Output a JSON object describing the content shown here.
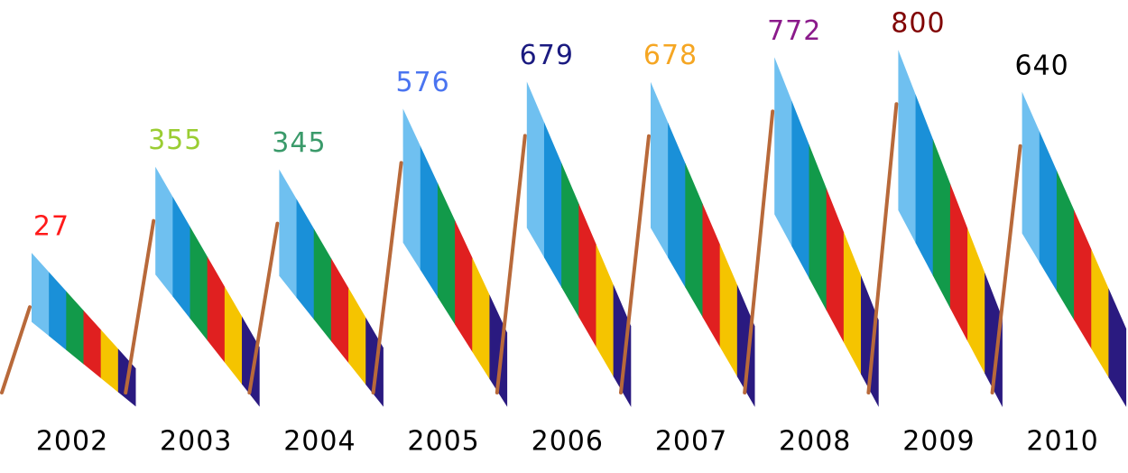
{
  "chart_data": {
    "type": "bar",
    "categories": [
      "2002",
      "2003",
      "2004",
      "2005",
      "2006",
      "2007",
      "2008",
      "2009",
      "2010"
    ],
    "values": [
      27,
      355,
      345,
      576,
      679,
      678,
      772,
      800,
      640
    ],
    "label_colors": [
      "#ff1a1a",
      "#9acd32",
      "#3a9a6a",
      "#4a74f0",
      "#1a1a80",
      "#f5a623",
      "#8b1a8b",
      "#800000",
      "#000000"
    ],
    "stripe_colors": [
      "#6fc0f0",
      "#1a90d8",
      "#129a4a",
      "#e02020",
      "#f5c400",
      "#2a1a80"
    ],
    "pole_color": "#b8693a"
  }
}
